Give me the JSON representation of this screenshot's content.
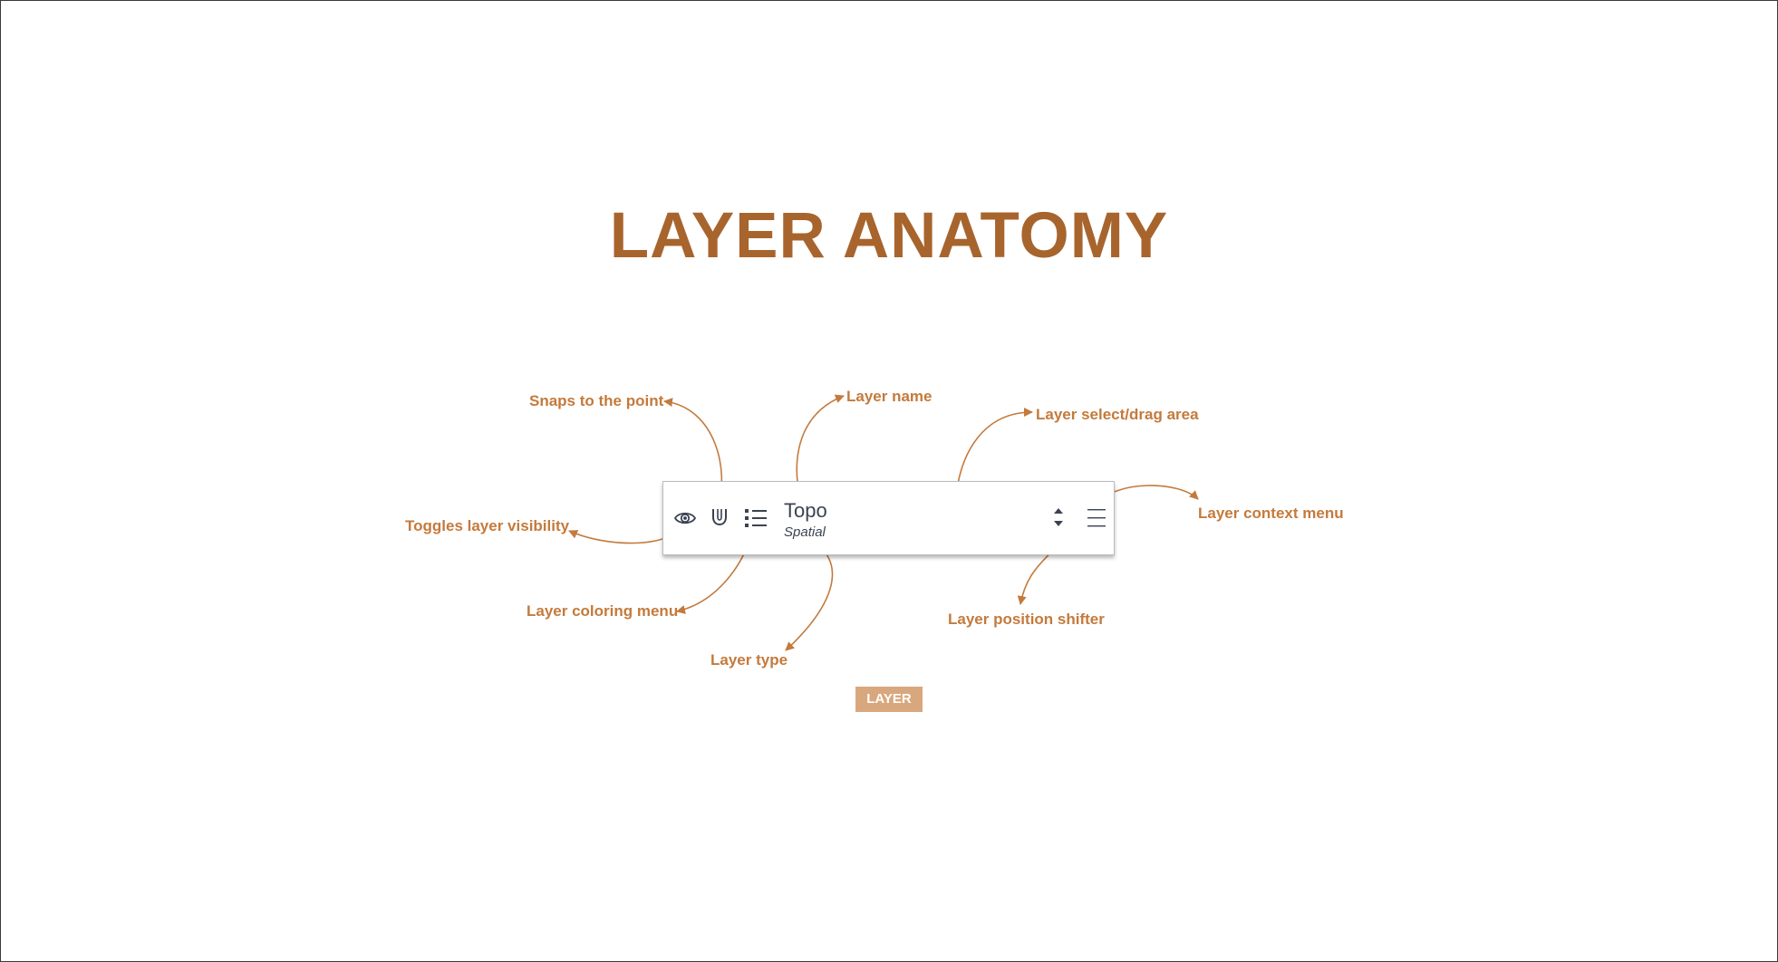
{
  "title": "LAYER ANATOMY",
  "accent_color": "#C47A3C",
  "title_color": "#A8642D",
  "layer": {
    "name": "Topo",
    "type": "Spatial",
    "icons": [
      "eye-icon",
      "magnet-icon",
      "list-icon",
      "up-down-arrows-icon",
      "hamburger-menu-icon"
    ]
  },
  "callouts": {
    "snaps": "Snaps to the point",
    "layer_name": "Layer name",
    "select_drag": "Layer select/drag area",
    "visibility": "Toggles layer visibility",
    "context_menu": "Layer context menu",
    "coloring_menu": "Layer coloring menu",
    "position_shifter": "Layer position shifter",
    "layer_type": "Layer type"
  },
  "tag_label": "LAYER"
}
